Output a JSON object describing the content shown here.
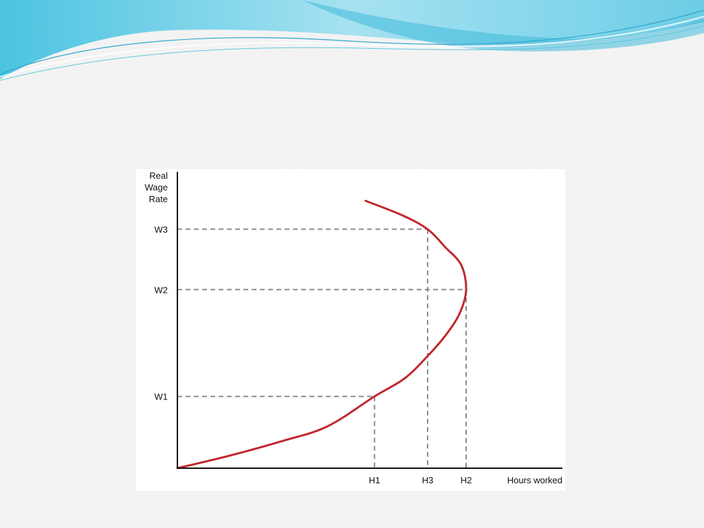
{
  "colors": {
    "curve": "#c0282e",
    "axis": "#111111",
    "guide": "#8a8a8a",
    "banner_dark": "#3fb9db",
    "banner_light": "#8fdcef"
  },
  "chart_data": {
    "type": "line",
    "title": "",
    "ylabel_lines": [
      "Real",
      "Wage",
      "Rate"
    ],
    "xlabel": "Hours worked",
    "xlim": [
      0,
      100
    ],
    "ylim": [
      0,
      100
    ],
    "grid": false,
    "legend": "none",
    "y_ticks": [
      {
        "label": "W1",
        "value": 24
      },
      {
        "label": "W2",
        "value": 59.7
      },
      {
        "label": "W3",
        "value": 79.9
      }
    ],
    "x_ticks": [
      {
        "label": "H1",
        "value": 51.2
      },
      {
        "label": "H3",
        "value": 65
      },
      {
        "label": "H2",
        "value": 75
      }
    ],
    "series": [
      {
        "values_xy": [
          [
            0,
            0
          ],
          [
            13,
            4
          ],
          [
            27,
            9
          ],
          [
            39,
            14
          ],
          [
            51.2,
            24
          ],
          [
            59,
            30
          ],
          [
            65,
            37.5
          ],
          [
            70,
            45
          ],
          [
            73.4,
            52
          ],
          [
            75,
            59.7
          ],
          [
            73.7,
            68
          ],
          [
            69.5,
            74
          ],
          [
            65,
            79.9
          ],
          [
            58.5,
            84.5
          ],
          [
            48.9,
            89.4
          ]
        ]
      }
    ]
  }
}
